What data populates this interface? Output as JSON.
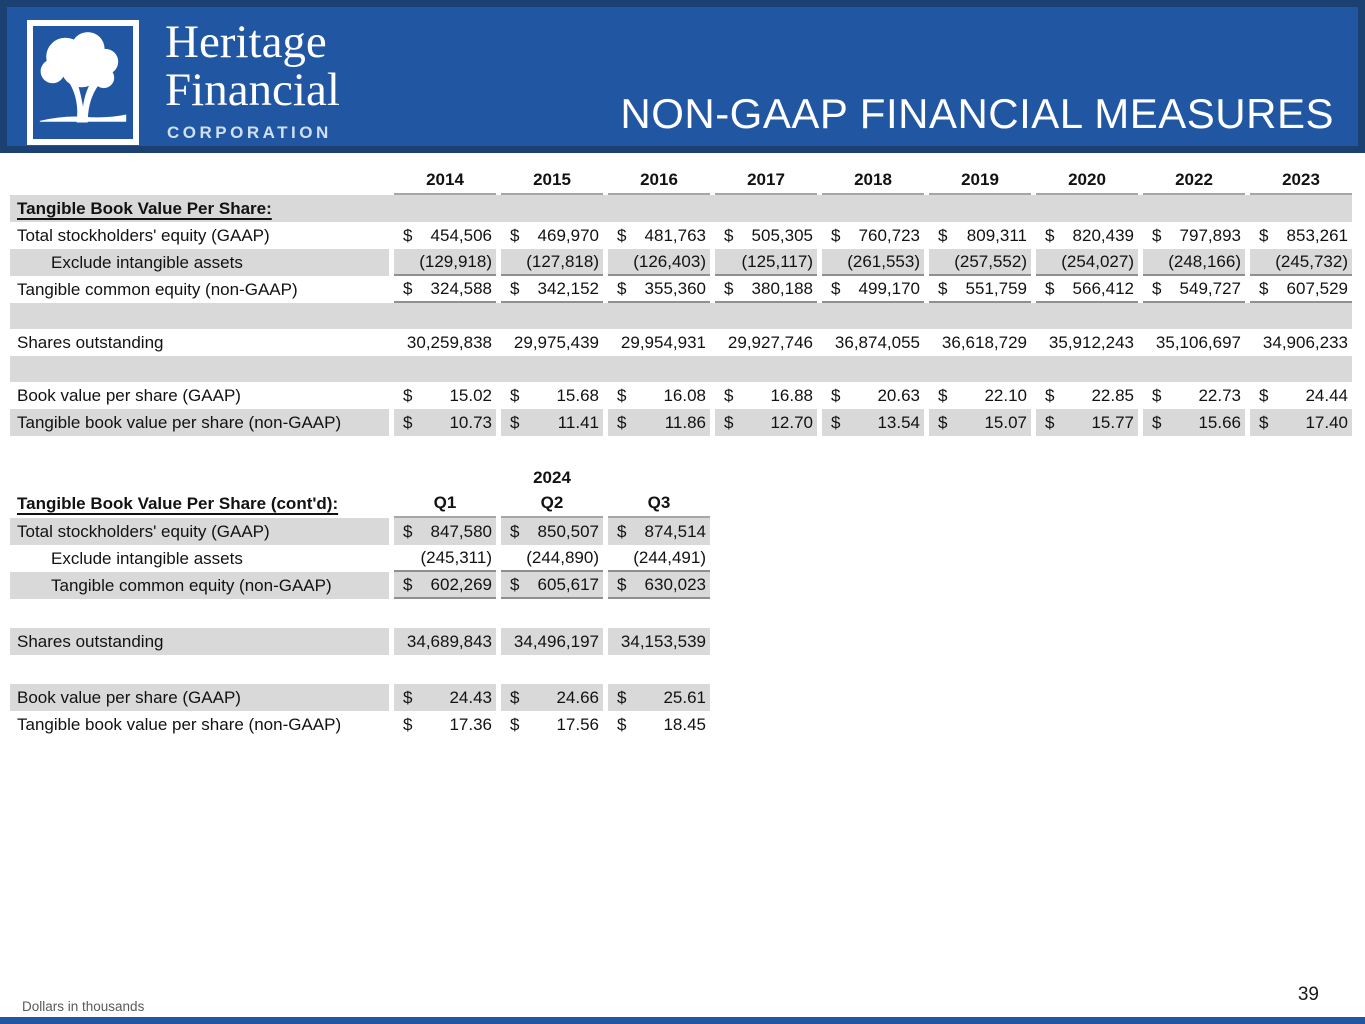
{
  "meta": {
    "currency": "$"
  },
  "colors": {
    "header_blue": "#2156a3",
    "header_border": "#1b4173",
    "row_band_gray": "#d9d9d9",
    "rule_gray": "#a6a6a6"
  },
  "header": {
    "title": "NON-GAAP FINANCIAL MEASURES",
    "logo_line1": "Heritage",
    "logo_line2": "Financial",
    "logo_line3": "CORPORATION"
  },
  "table1": {
    "years": [
      "2014",
      "2015",
      "2016",
      "2017",
      "2018",
      "2019",
      "2020",
      "2022",
      "2023"
    ],
    "section_label": "Tangible Book Value Per Share:",
    "rows": [
      {
        "label": "Total stockholders' equity (GAAP)",
        "dollar": true,
        "shaded": false,
        "underline": false,
        "indent": false,
        "values": [
          "454,506",
          "469,970",
          "481,763",
          "505,305",
          "760,723",
          "809,311",
          "820,439",
          "797,893",
          "853,261"
        ]
      },
      {
        "label": "Exclude intangible assets",
        "dollar": false,
        "shaded": true,
        "underline": true,
        "indent": true,
        "values": [
          "(129,918)",
          "(127,818)",
          "(126,403)",
          "(125,117)",
          "(261,553)",
          "(257,552)",
          "(254,027)",
          "(248,166)",
          "(245,732)"
        ]
      },
      {
        "label": "Tangible common equity (non-GAAP)",
        "dollar": true,
        "shaded": false,
        "underline": true,
        "indent": false,
        "values": [
          "324,588",
          "342,152",
          "355,360",
          "380,188",
          "499,170",
          "551,759",
          "566,412",
          "549,727",
          "607,529"
        ]
      },
      {
        "spacer": true,
        "shaded": true
      },
      {
        "label": "Shares outstanding",
        "dollar": false,
        "shaded": false,
        "underline": false,
        "indent": false,
        "values": [
          "30,259,838",
          "29,975,439",
          "29,954,931",
          "29,927,746",
          "36,874,055",
          "36,618,729",
          "35,912,243",
          "35,106,697",
          "34,906,233"
        ]
      },
      {
        "spacer": true,
        "shaded": true
      },
      {
        "label": "Book value per share (GAAP)",
        "dollar": true,
        "shaded": false,
        "underline": false,
        "indent": false,
        "values": [
          "15.02",
          "15.68",
          "16.08",
          "16.88",
          "20.63",
          "22.10",
          "22.85",
          "22.73",
          "24.44"
        ]
      },
      {
        "label": "Tangible book value per share (non-GAAP)",
        "dollar": true,
        "shaded": true,
        "underline": false,
        "indent": false,
        "values": [
          "10.73",
          "11.41",
          "11.86",
          "12.70",
          "13.54",
          "15.07",
          "15.77",
          "15.66",
          "17.40"
        ]
      }
    ]
  },
  "table2": {
    "year_group": "2024",
    "section_label": "Tangible Book Value Per Share (cont'd):",
    "quarters": [
      "Q1",
      "Q2",
      "Q3"
    ],
    "rows": [
      {
        "label": "Total stockholders' equity (GAAP)",
        "dollar": true,
        "shaded": true,
        "underline": false,
        "indent": false,
        "values": [
          "847,580",
          "850,507",
          "874,514"
        ]
      },
      {
        "label": "Exclude intangible assets",
        "dollar": false,
        "shaded": false,
        "underline": true,
        "indent": true,
        "values": [
          "(245,311)",
          "(244,890)",
          "(244,491)"
        ]
      },
      {
        "label": "Tangible common equity (non-GAAP)",
        "dollar": true,
        "shaded": true,
        "underline": true,
        "indent": true,
        "values": [
          "602,269",
          "605,617",
          "630,023"
        ]
      },
      {
        "spacer": true,
        "shaded": false
      },
      {
        "label": "Shares outstanding",
        "dollar": false,
        "shaded": true,
        "underline": false,
        "indent": false,
        "values": [
          "34,689,843",
          "34,496,197",
          "34,153,539"
        ]
      },
      {
        "spacer": true,
        "shaded": false
      },
      {
        "label": "Book value per share (GAAP)",
        "dollar": true,
        "shaded": true,
        "underline": false,
        "indent": false,
        "values": [
          "24.43",
          "24.66",
          "25.61"
        ]
      },
      {
        "label": "Tangible book value per share (non-GAAP)",
        "dollar": true,
        "shaded": false,
        "underline": false,
        "indent": false,
        "values": [
          "17.36",
          "17.56",
          "18.45"
        ]
      }
    ]
  },
  "footer": {
    "note": "Dollars in thousands",
    "page": "39"
  }
}
